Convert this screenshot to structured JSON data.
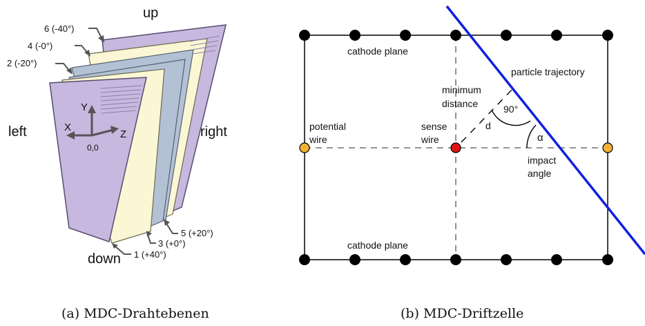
{
  "left_panel": {
    "direction_labels": {
      "up": "up",
      "down": "down",
      "left": "left",
      "right": "right"
    },
    "axes": {
      "y": "Y",
      "x": "X",
      "z": "Z",
      "origin": "0,0"
    },
    "layers": [
      {
        "label": "6 (-40°)",
        "color": "#c6b8de"
      },
      {
        "label": "4 (-0°)",
        "color": "#fbf7d4"
      },
      {
        "label": "2 (-20°)",
        "color": "#b3c1d4"
      },
      {
        "label": "5 (+20°)",
        "color": "#b3c1d4"
      },
      {
        "label": "3 (+0°)",
        "color": "#fbf7d4"
      },
      {
        "label": "1 (+40°)",
        "color": "#c6b8de"
      }
    ],
    "caption": "(a) MDC-Drahtebenen"
  },
  "right_panel": {
    "labels": {
      "cathode_top": "cathode plane",
      "cathode_bottom": "cathode plane",
      "potential_wire": [
        "potential",
        "wire"
      ],
      "sense_wire": [
        "sense",
        "wire"
      ],
      "minimum_distance": [
        "minimum",
        "distance"
      ],
      "distance_symbol": "d",
      "right_angle": "90°",
      "particle_trajectory": "particle trajectory",
      "alpha": "α",
      "impact_angle": [
        "impact",
        "angle"
      ]
    },
    "colors": {
      "trajectory": "#1020e0",
      "sense_wire": "#e01010",
      "potential_wire": "#f2b233",
      "cathode_wire": "#000000"
    },
    "caption": "(b) MDC-Driftzelle"
  }
}
